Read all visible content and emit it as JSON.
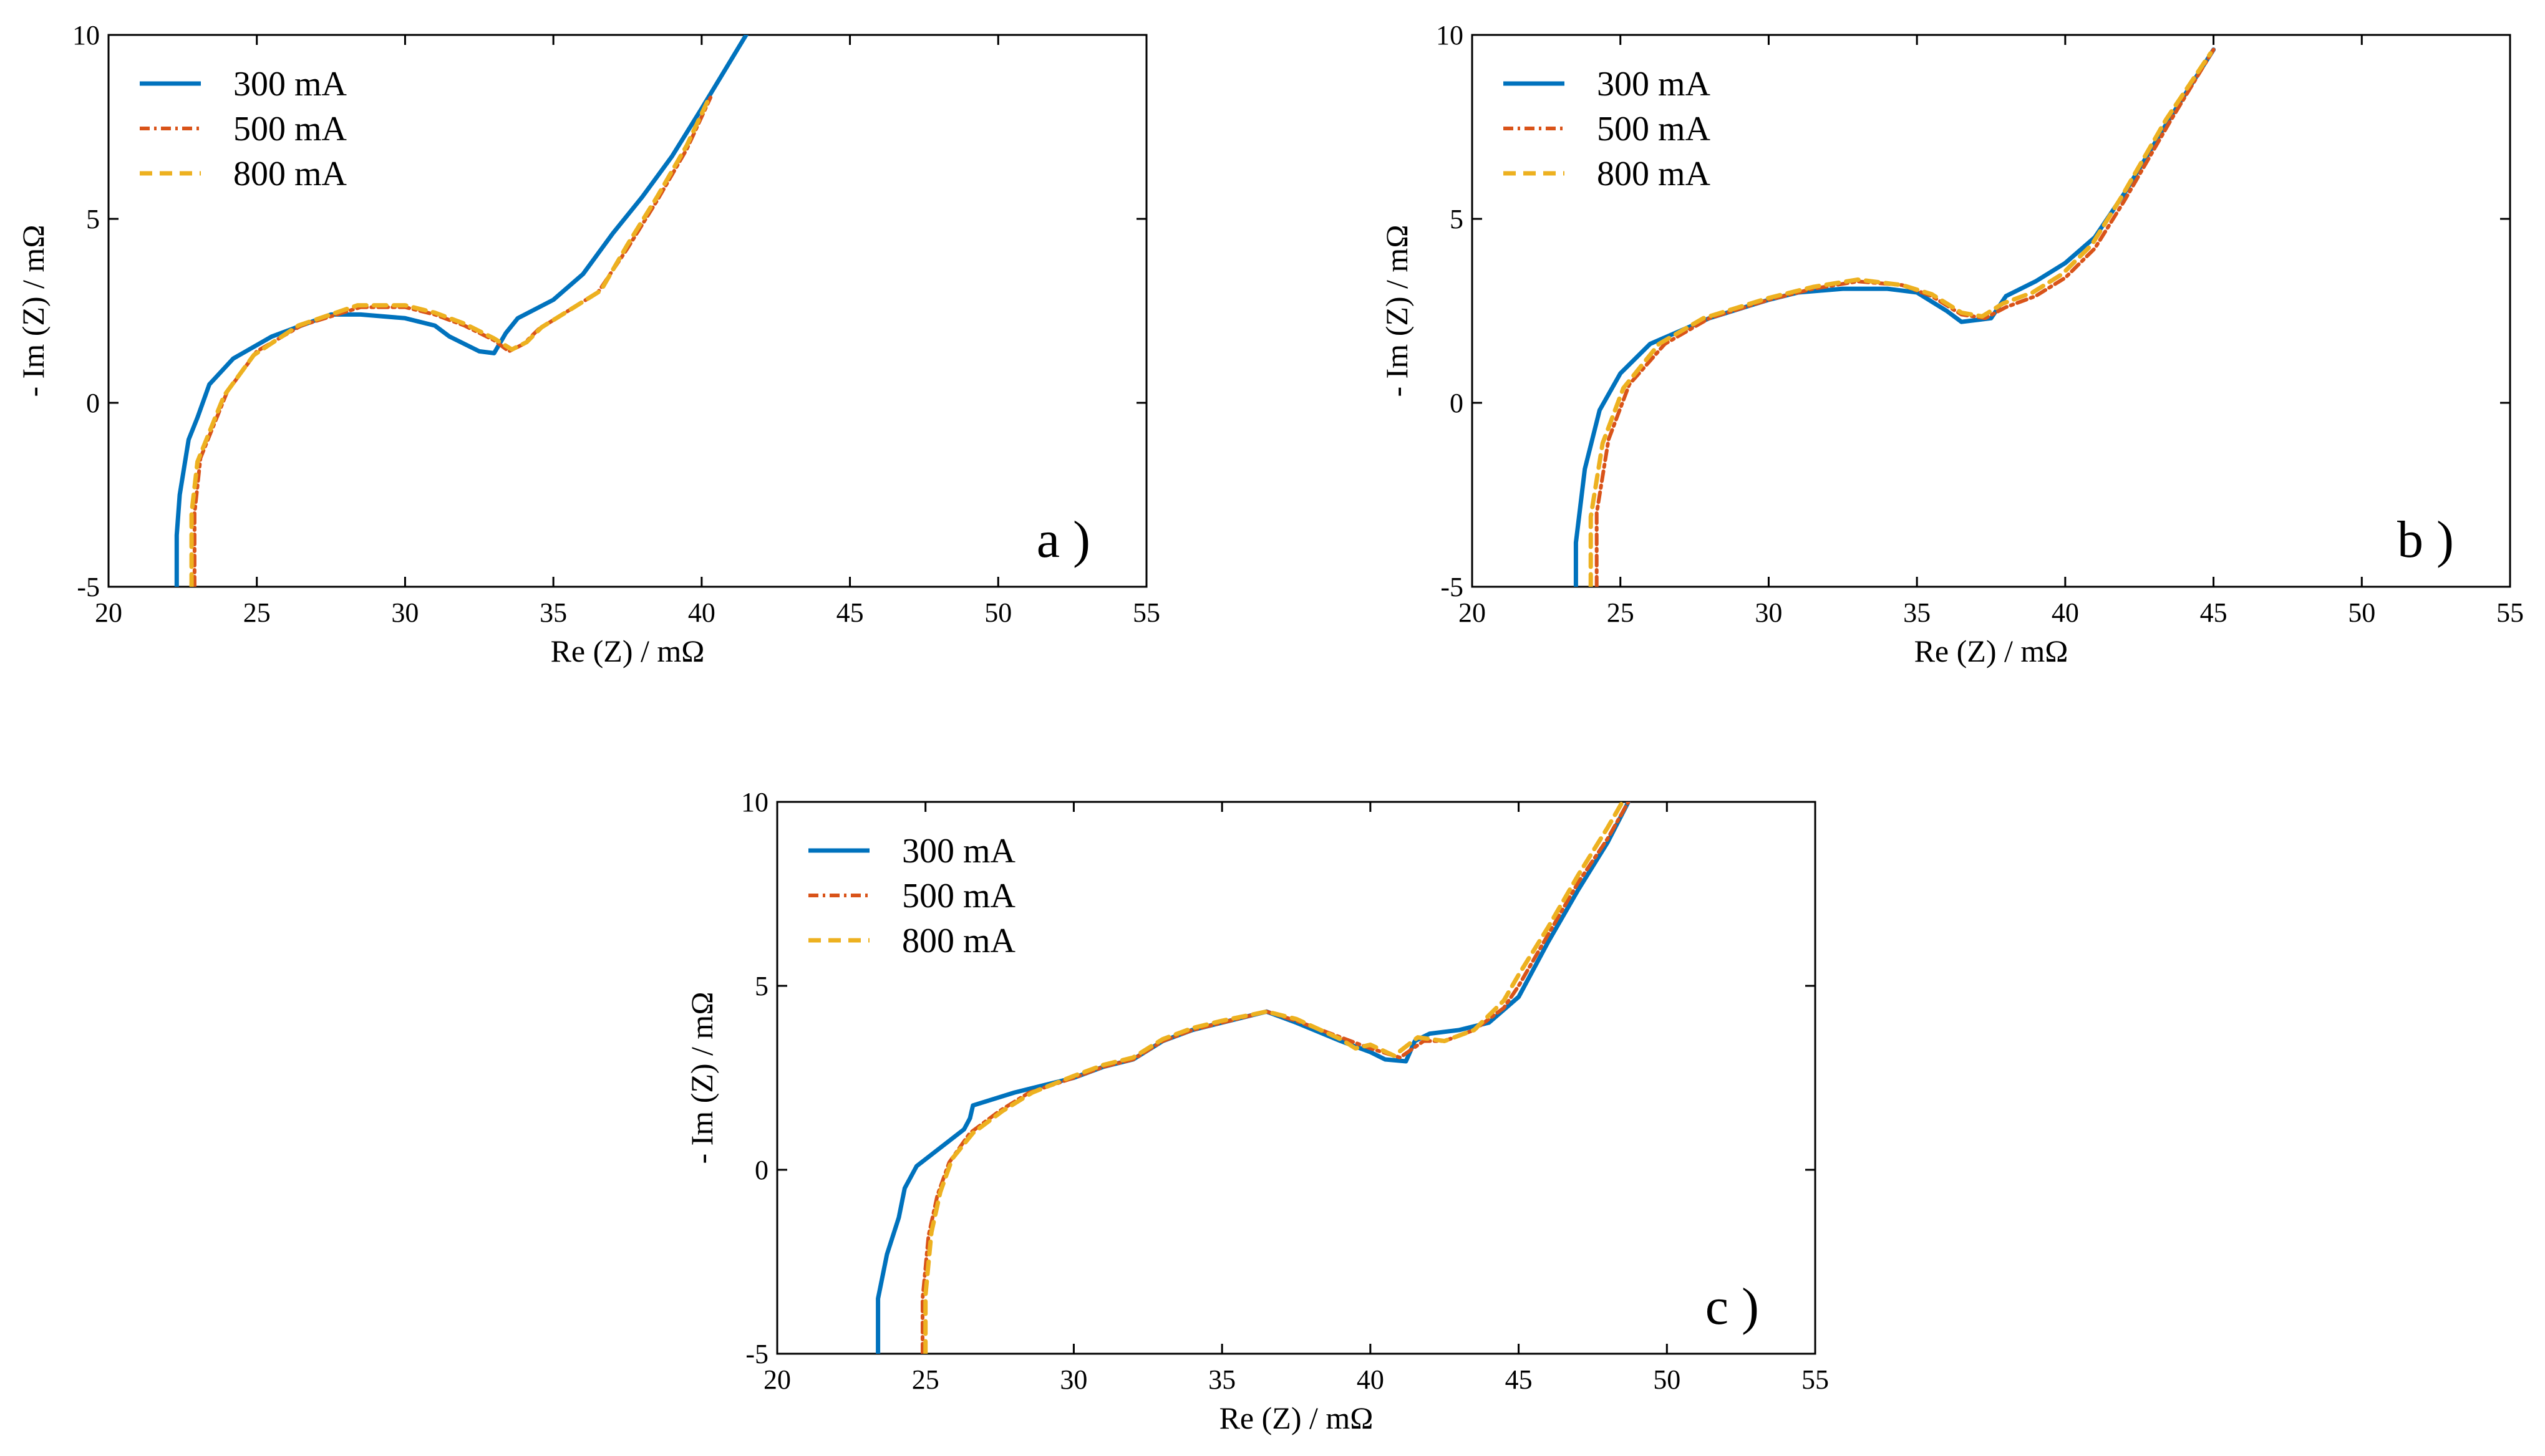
{
  "series_style": [
    {
      "name": "300 mA",
      "color": "#0072BD",
      "dash": "",
      "width": 7
    },
    {
      "name": "500 mA",
      "color": "#D95319",
      "dash": "16 7 4 7",
      "width": 6
    },
    {
      "name": "800 mA",
      "color": "#EDB120",
      "dash": "20 12",
      "width": 7
    }
  ],
  "chart_data": [
    {
      "type": "line",
      "panel": "a )",
      "xlabel": "Re (Z) / mΩ",
      "ylabel": "- Im (Z) / mΩ",
      "xlim": [
        20,
        55
      ],
      "ylim": [
        -5,
        10
      ],
      "xticks": [
        "20",
        "25",
        "30",
        "35",
        "40",
        "45",
        "50",
        "55"
      ],
      "yticks": [
        "-5",
        "0",
        "5",
        "10"
      ],
      "legend": "top-left",
      "series": [
        {
          "name": "300 mA",
          "points": [
            [
              22.3,
              -5
            ],
            [
              22.3,
              -3.6
            ],
            [
              22.4,
              -2.5
            ],
            [
              22.7,
              -1.0
            ],
            [
              23.0,
              -0.4
            ],
            [
              23.4,
              0.5
            ],
            [
              24.2,
              1.2
            ],
            [
              25.5,
              1.8
            ],
            [
              27.5,
              2.4
            ],
            [
              28.5,
              2.4
            ],
            [
              30.0,
              2.3
            ],
            [
              31.0,
              2.1
            ],
            [
              31.5,
              1.8
            ],
            [
              32.5,
              1.4
            ],
            [
              33.0,
              1.35
            ],
            [
              33.4,
              1.9
            ],
            [
              33.8,
              2.3
            ],
            [
              35.0,
              2.8
            ],
            [
              36.0,
              3.5
            ],
            [
              37.0,
              4.6
            ],
            [
              38.0,
              5.6
            ],
            [
              39.0,
              6.7
            ],
            [
              40.0,
              8.0
            ],
            [
              41.5,
              10.0
            ]
          ]
        },
        {
          "name": "500 mA",
          "points": [
            [
              22.9,
              -5
            ],
            [
              22.9,
              -3.0
            ],
            [
              23.1,
              -1.5
            ],
            [
              23.5,
              -0.7
            ],
            [
              24.0,
              0.3
            ],
            [
              25.0,
              1.4
            ],
            [
              26.5,
              2.1
            ],
            [
              28.5,
              2.6
            ],
            [
              30.0,
              2.6
            ],
            [
              31.0,
              2.4
            ],
            [
              32.0,
              2.1
            ],
            [
              33.0,
              1.7
            ],
            [
              33.5,
              1.4
            ],
            [
              34.0,
              1.6
            ],
            [
              34.5,
              2.0
            ],
            [
              35.5,
              2.5
            ],
            [
              36.5,
              3.0
            ],
            [
              37.5,
              4.2
            ],
            [
              38.5,
              5.5
            ],
            [
              39.5,
              6.9
            ],
            [
              40.3,
              8.3
            ]
          ]
        },
        {
          "name": "800 mA",
          "points": [
            [
              22.8,
              -5
            ],
            [
              22.8,
              -3.0
            ],
            [
              23.0,
              -1.6
            ],
            [
              23.4,
              -0.8
            ],
            [
              23.9,
              0.2
            ],
            [
              24.9,
              1.3
            ],
            [
              26.4,
              2.1
            ],
            [
              28.4,
              2.65
            ],
            [
              30.0,
              2.65
            ],
            [
              31.0,
              2.45
            ],
            [
              32.0,
              2.15
            ],
            [
              33.0,
              1.75
            ],
            [
              33.6,
              1.45
            ],
            [
              34.1,
              1.65
            ],
            [
              34.6,
              2.05
            ],
            [
              35.6,
              2.55
            ],
            [
              36.6,
              3.05
            ],
            [
              37.5,
              4.3
            ],
            [
              38.5,
              5.6
            ],
            [
              39.5,
              7.0
            ],
            [
              40.2,
              8.2
            ]
          ]
        }
      ]
    },
    {
      "type": "line",
      "panel": "b )",
      "xlabel": "Re (Z) / mΩ",
      "ylabel": "- Im (Z) / mΩ",
      "xlim": [
        20,
        55
      ],
      "ylim": [
        -5,
        10
      ],
      "xticks": [
        "20",
        "25",
        "30",
        "35",
        "40",
        "45",
        "50",
        "55"
      ],
      "yticks": [
        "-5",
        "0",
        "5",
        "10"
      ],
      "legend": "top-left",
      "series": [
        {
          "name": "300 mA",
          "points": [
            [
              23.5,
              -5
            ],
            [
              23.5,
              -3.8
            ],
            [
              23.8,
              -1.8
            ],
            [
              24.3,
              -0.2
            ],
            [
              25.0,
              0.8
            ],
            [
              26.0,
              1.6
            ],
            [
              28.0,
              2.3
            ],
            [
              30.0,
              2.8
            ],
            [
              31.0,
              3.0
            ],
            [
              32.5,
              3.1
            ],
            [
              34.0,
              3.1
            ],
            [
              35.0,
              3.0
            ],
            [
              36.0,
              2.5
            ],
            [
              36.5,
              2.2
            ],
            [
              37.5,
              2.3
            ],
            [
              38.0,
              2.9
            ],
            [
              39.0,
              3.3
            ],
            [
              40.0,
              3.8
            ],
            [
              41.0,
              4.5
            ],
            [
              42.0,
              5.7
            ],
            [
              43.5,
              7.7
            ],
            [
              45.0,
              9.6
            ]
          ]
        },
        {
          "name": "500 mA",
          "points": [
            [
              24.2,
              -5
            ],
            [
              24.2,
              -3.0
            ],
            [
              24.6,
              -1.0
            ],
            [
              25.3,
              0.5
            ],
            [
              26.5,
              1.6
            ],
            [
              28.0,
              2.3
            ],
            [
              30.0,
              2.8
            ],
            [
              31.5,
              3.1
            ],
            [
              33.0,
              3.3
            ],
            [
              34.5,
              3.2
            ],
            [
              35.5,
              2.9
            ],
            [
              36.5,
              2.4
            ],
            [
              37.3,
              2.3
            ],
            [
              38.0,
              2.6
            ],
            [
              39.0,
              2.9
            ],
            [
              40.0,
              3.4
            ],
            [
              41.0,
              4.2
            ],
            [
              42.0,
              5.5
            ],
            [
              43.5,
              7.6
            ],
            [
              45.0,
              9.6
            ]
          ]
        },
        {
          "name": "800 mA",
          "points": [
            [
              24.0,
              -5
            ],
            [
              24.0,
              -3.1
            ],
            [
              24.4,
              -1.1
            ],
            [
              25.1,
              0.4
            ],
            [
              26.3,
              1.6
            ],
            [
              27.8,
              2.3
            ],
            [
              30.0,
              2.85
            ],
            [
              31.5,
              3.15
            ],
            [
              33.0,
              3.35
            ],
            [
              34.5,
              3.2
            ],
            [
              35.5,
              2.95
            ],
            [
              36.5,
              2.45
            ],
            [
              37.2,
              2.35
            ],
            [
              37.9,
              2.7
            ],
            [
              38.9,
              3.0
            ],
            [
              39.9,
              3.5
            ],
            [
              40.9,
              4.3
            ],
            [
              41.9,
              5.6
            ],
            [
              43.4,
              7.7
            ],
            [
              44.9,
              9.5
            ]
          ]
        }
      ]
    },
    {
      "type": "line",
      "panel": "c )",
      "xlabel": "Re (Z) / mΩ",
      "ylabel": "- Im (Z) / mΩ",
      "xlim": [
        20,
        55
      ],
      "ylim": [
        -5,
        10
      ],
      "xticks": [
        "20",
        "25",
        "30",
        "35",
        "40",
        "45",
        "50",
        "55"
      ],
      "yticks": [
        "-5",
        "0",
        "5",
        "10"
      ],
      "legend": "top-left",
      "series": [
        {
          "name": "300 mA",
          "points": [
            [
              23.4,
              -5
            ],
            [
              23.4,
              -3.5
            ],
            [
              23.7,
              -2.3
            ],
            [
              24.1,
              -1.3
            ],
            [
              24.3,
              -0.5
            ],
            [
              24.7,
              0.1
            ],
            [
              25.5,
              0.6
            ],
            [
              26.3,
              1.1
            ],
            [
              26.5,
              1.4
            ],
            [
              26.6,
              1.75
            ],
            [
              28.0,
              2.1
            ],
            [
              30.0,
              2.5
            ],
            [
              31.0,
              2.8
            ],
            [
              32.0,
              3.0
            ],
            [
              33.0,
              3.5
            ],
            [
              34.0,
              3.8
            ],
            [
              35.0,
              4.0
            ],
            [
              36.5,
              4.3
            ],
            [
              37.5,
              4.0
            ],
            [
              39.0,
              3.5
            ],
            [
              40.0,
              3.2
            ],
            [
              40.5,
              3.0
            ],
            [
              41.2,
              2.95
            ],
            [
              41.5,
              3.5
            ],
            [
              42.0,
              3.7
            ],
            [
              43.0,
              3.8
            ],
            [
              44.0,
              4.0
            ],
            [
              45.0,
              4.7
            ],
            [
              46.0,
              6.2
            ],
            [
              47.0,
              7.6
            ],
            [
              48.0,
              8.9
            ],
            [
              48.7,
              10.0
            ]
          ]
        },
        {
          "name": "500 mA",
          "points": [
            [
              24.9,
              -5
            ],
            [
              24.9,
              -3.5
            ],
            [
              25.1,
              -1.8
            ],
            [
              25.4,
              -0.7
            ],
            [
              25.8,
              0.2
            ],
            [
              26.5,
              1.0
            ],
            [
              27.5,
              1.6
            ],
            [
              28.5,
              2.1
            ],
            [
              30.0,
              2.5
            ],
            [
              31.0,
              2.8
            ],
            [
              32.0,
              3.0
            ],
            [
              33.0,
              3.5
            ],
            [
              34.0,
              3.8
            ],
            [
              35.0,
              4.0
            ],
            [
              36.5,
              4.3
            ],
            [
              37.5,
              4.05
            ],
            [
              39.0,
              3.6
            ],
            [
              40.0,
              3.3
            ],
            [
              41.0,
              3.05
            ],
            [
              41.8,
              3.5
            ],
            [
              42.5,
              3.5
            ],
            [
              43.5,
              3.8
            ],
            [
              44.5,
              4.4
            ],
            [
              45.0,
              5.0
            ],
            [
              46.0,
              6.4
            ],
            [
              47.0,
              7.8
            ],
            [
              48.0,
              9.0
            ],
            [
              48.7,
              10.0
            ]
          ]
        },
        {
          "name": "800 mA",
          "points": [
            [
              25.0,
              -5
            ],
            [
              25.0,
              -3.4
            ],
            [
              25.2,
              -1.7
            ],
            [
              25.5,
              -0.6
            ],
            [
              25.9,
              0.3
            ],
            [
              26.6,
              1.0
            ],
            [
              27.6,
              1.6
            ],
            [
              28.6,
              2.1
            ],
            [
              30.0,
              2.55
            ],
            [
              31.0,
              2.85
            ],
            [
              32.0,
              3.05
            ],
            [
              33.0,
              3.55
            ],
            [
              34.0,
              3.85
            ],
            [
              35.0,
              4.05
            ],
            [
              36.5,
              4.3
            ],
            [
              37.5,
              4.1
            ],
            [
              39.0,
              3.55
            ],
            [
              39.5,
              3.3
            ],
            [
              40.0,
              3.4
            ],
            [
              40.8,
              3.1
            ],
            [
              41.6,
              3.6
            ],
            [
              42.5,
              3.5
            ],
            [
              43.5,
              3.8
            ],
            [
              44.5,
              4.6
            ],
            [
              45.0,
              5.3
            ],
            [
              46.0,
              6.6
            ],
            [
              47.0,
              8.0
            ],
            [
              48.0,
              9.3
            ],
            [
              48.5,
              10.0
            ]
          ]
        }
      ]
    }
  ]
}
